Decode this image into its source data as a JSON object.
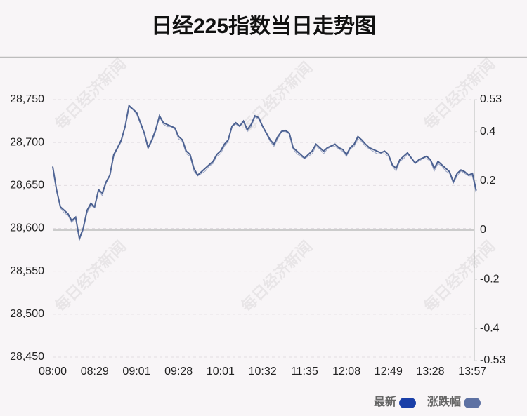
{
  "chart_data": {
    "type": "line",
    "title": "日经225指数当日走势图",
    "watermark": "每日经济新闻",
    "categories": [
      "08:00",
      null,
      null,
      null,
      null,
      null,
      null,
      null,
      null,
      null,
      null,
      "08:29",
      null,
      null,
      null,
      null,
      null,
      null,
      null,
      null,
      null,
      null,
      "09:01",
      null,
      null,
      null,
      null,
      null,
      null,
      null,
      null,
      null,
      null,
      "09:28",
      null,
      null,
      null,
      null,
      null,
      null,
      null,
      null,
      null,
      null,
      "10:01",
      null,
      null,
      null,
      null,
      null,
      null,
      null,
      null,
      null,
      null,
      "10:32",
      null,
      null,
      null,
      null,
      null,
      null,
      null,
      null,
      null,
      null,
      "11:35",
      null,
      null,
      null,
      null,
      null,
      null,
      null,
      null,
      null,
      null,
      "12:08",
      null,
      null,
      null,
      null,
      null,
      null,
      null,
      null,
      null,
      null,
      "12:49",
      null,
      null,
      null,
      null,
      null,
      null,
      null,
      null,
      null,
      null,
      "13:28",
      null,
      null,
      null,
      null,
      null,
      null,
      null,
      null,
      null,
      null,
      "13:57",
      null
    ],
    "series": [
      {
        "name": "最新",
        "color": "#1a3fa8",
        "line_color": "#4a5f8f",
        "values": [
          28672,
          28645,
          28625,
          28621,
          28617,
          28609,
          28613,
          28588,
          28600,
          28621,
          28629,
          28625,
          28645,
          28641,
          28654,
          28662,
          28686,
          28694,
          28703,
          28719,
          28743,
          28739,
          28735,
          28723,
          28711,
          28694,
          28703,
          28715,
          28731,
          28723,
          28721,
          28719,
          28717,
          28707,
          28703,
          28690,
          28686,
          28670,
          28662,
          28666,
          28670,
          28674,
          28678,
          28686,
          28690,
          28698,
          28703,
          28719,
          28723,
          28719,
          28725,
          28715,
          28721,
          28731,
          28729,
          28719,
          28711,
          28703,
          28698,
          28707,
          28713,
          28714,
          28711,
          28694,
          28690,
          28686,
          28682,
          28686,
          28690,
          28698,
          28694,
          28690,
          28694,
          28696,
          28698,
          28694,
          28692,
          28686,
          28694,
          28698,
          28707,
          28703,
          28698,
          28694,
          28692,
          28690,
          28688,
          28690,
          28686,
          28674,
          28670,
          28680,
          28684,
          28688,
          28682,
          28676,
          28680,
          28682,
          28684,
          28680,
          28670,
          28678,
          28674,
          28670,
          28666,
          28654,
          28664,
          28668,
          28666,
          28662,
          28664,
          28644
        ]
      },
      {
        "name": "涨跌幅",
        "color": "#5d71a3",
        "line_color": "#5d71a3",
        "axis": "y2",
        "values": [
          0.25,
          0.16,
          0.09,
          0.07,
          0.06,
          0.03,
          0.05,
          -0.04,
          0,
          0.07,
          0.1,
          0.09,
          0.16,
          0.14,
          0.19,
          0.22,
          0.3,
          0.33,
          0.36,
          0.42,
          0.5,
          0.49,
          0.47,
          0.43,
          0.39,
          0.33,
          0.36,
          0.4,
          0.46,
          0.43,
          0.42,
          0.42,
          0.41,
          0.37,
          0.36,
          0.31,
          0.3,
          0.24,
          0.22,
          0.23,
          0.24,
          0.26,
          0.27,
          0.3,
          0.31,
          0.34,
          0.36,
          0.42,
          0.43,
          0.42,
          0.44,
          0.4,
          0.42,
          0.46,
          0.45,
          0.42,
          0.39,
          0.36,
          0.34,
          0.37,
          0.4,
          0.4,
          0.39,
          0.33,
          0.31,
          0.3,
          0.29,
          0.3,
          0.31,
          0.34,
          0.33,
          0.31,
          0.33,
          0.34,
          0.34,
          0.33,
          0.32,
          0.3,
          0.33,
          0.34,
          0.37,
          0.36,
          0.34,
          0.33,
          0.32,
          0.31,
          0.31,
          0.31,
          0.3,
          0.26,
          0.24,
          0.28,
          0.29,
          0.31,
          0.29,
          0.27,
          0.28,
          0.29,
          0.29,
          0.28,
          0.24,
          0.27,
          0.26,
          0.24,
          0.23,
          0.19,
          0.22,
          0.24,
          0.23,
          0.22,
          0.22,
          0.15
        ]
      }
    ],
    "ylim": [
      28450,
      28750
    ],
    "yticks": [
      {
        "value": 28450,
        "label": "28,450"
      },
      {
        "value": 28500,
        "label": "28,500"
      },
      {
        "value": 28550,
        "label": "28,550"
      },
      {
        "value": 28600,
        "label": "28,600"
      },
      {
        "value": 28650,
        "label": "28,650"
      },
      {
        "value": 28700,
        "label": "28,700"
      },
      {
        "value": 28750,
        "label": "28,750"
      }
    ],
    "y2lim": [
      -0.53,
      0.53
    ],
    "y2ticks": [
      0.53,
      0.4,
      0.2,
      0,
      -0.2,
      -0.4,
      -0.53
    ],
    "grid": true,
    "legend": "bottom-right"
  }
}
